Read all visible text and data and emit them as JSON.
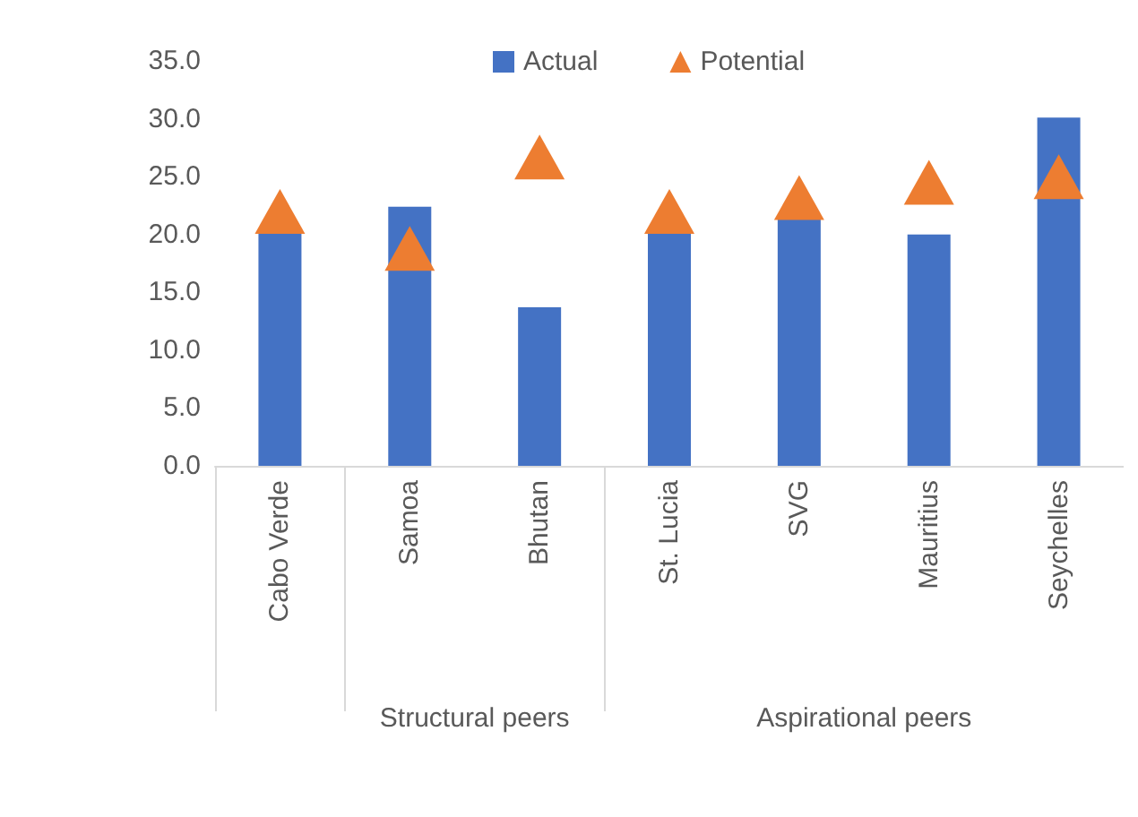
{
  "chart_data": {
    "type": "bar",
    "categories": [
      "Cabo Verde",
      "Samoa",
      "Bhutan",
      "St. Lucia",
      "SVG",
      "Mauritius",
      "Seychelles"
    ],
    "series": [
      {
        "name": "Actual",
        "color": "#4472c4",
        "values": [
          20.2,
          22.4,
          13.7,
          20.1,
          21.4,
          20.0,
          30.1
        ]
      },
      {
        "name": "Potential",
        "type": "scatter",
        "marker": "triangle",
        "color": "#ed7d31",
        "values": [
          22.0,
          18.8,
          26.7,
          22.0,
          23.2,
          24.5,
          25.0
        ]
      }
    ],
    "ylim": [
      0,
      35
    ],
    "yticks": [
      {
        "value": 0,
        "label": "0.0"
      },
      {
        "value": 5,
        "label": "5.0"
      },
      {
        "value": 10,
        "label": "10.0"
      },
      {
        "value": 15,
        "label": "15.0"
      },
      {
        "value": 20,
        "label": "20.0"
      },
      {
        "value": 25,
        "label": "25.0"
      },
      {
        "value": 30,
        "label": "30.0"
      },
      {
        "value": 35,
        "label": "35.0"
      }
    ],
    "annotations": [
      "Structural peers",
      "Aspirational peers"
    ],
    "grid": false,
    "legend": "top"
  }
}
